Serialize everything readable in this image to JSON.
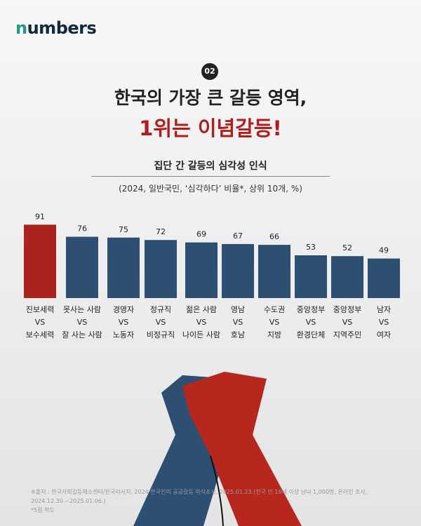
{
  "brand": "numbers",
  "badge": "02",
  "title_line1": "한국의 가장 큰 갈등 영역,",
  "title_line2": "1위는 이념갈등!",
  "chart_data": {
    "type": "bar",
    "title": "집단 간 갈등의 심각성 인식",
    "subtitle": "(2024, 일반국민, ‘심각하다’ 비율*, 상위 10개, %)",
    "categories": [
      [
        "진보세력",
        "VS",
        "보수세력"
      ],
      [
        "못사는 사람",
        "VS",
        "잘 사는 사람"
      ],
      [
        "경영자",
        "VS",
        "노동자"
      ],
      [
        "정규직",
        "VS",
        "비정규직"
      ],
      [
        "젊은 사람",
        "VS",
        "나이든 사람"
      ],
      [
        "영남",
        "VS",
        "호남"
      ],
      [
        "수도권",
        "VS",
        "지방"
      ],
      [
        "중앙정부",
        "VS",
        "환경단체"
      ],
      [
        "중앙정부",
        "VS",
        "지역주민"
      ],
      [
        "남자",
        "VS",
        "여자"
      ]
    ],
    "values": [
      91,
      76,
      75,
      72,
      69,
      67,
      66,
      53,
      52,
      49
    ],
    "ylim": [
      0,
      100
    ],
    "colors": {
      "highlight": "#a8231e",
      "default": "#2d4f72"
    }
  },
  "source_line1": "※출처 : 한국사회갈등해소센터/한국리서치, 2024 한국인의 공공갈등 의식조사, 2025.01.23.(전국 만 19세 이상 남녀 1,000명, 온라인 조사,",
  "source_line2": "2024.12.30.~2025.01.06.)",
  "footnote": "*5점 척도"
}
